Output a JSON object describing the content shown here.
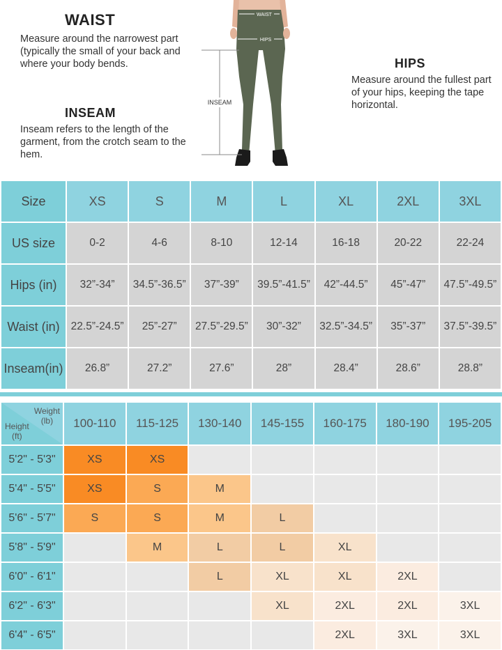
{
  "guide": {
    "waist": {
      "title": "WAIST",
      "text": "Measure around the narrowest part (typically the small of your back and where your body bends."
    },
    "inseam": {
      "title": "INSEAM",
      "text": "Inseam refers to the length of the garment, from the crotch seam to the hem."
    },
    "hips": {
      "title": "HIPS",
      "text": "Measure around the fullest part of your hips, keeping the tape horizontal."
    },
    "figure_labels": {
      "waist": "WAIST",
      "hips": "HIPS",
      "inseam": "INSEAM"
    }
  },
  "size_table": {
    "header_label": "Size",
    "sizes": [
      "XS",
      "S",
      "M",
      "L",
      "XL",
      "2XL",
      "3XL"
    ],
    "rows": [
      {
        "label": "US size",
        "values": [
          "0-2",
          "4-6",
          "8-10",
          "12-14",
          "16-18",
          "20-22",
          "22-24"
        ]
      },
      {
        "label": "Hips (in)",
        "values": [
          "32”-34”",
          "34.5”-36.5”",
          "37”-39”",
          "39.5”-41.5”",
          "42”-44.5”",
          "45”-47”",
          "47.5”-49.5”"
        ]
      },
      {
        "label": "Waist (in)",
        "values": [
          "22.5”-24.5”",
          "25”-27”",
          "27.5”-29.5”",
          "30”-32”",
          "32.5”-34.5”",
          "35”-37”",
          "37.5”-39.5”"
        ]
      },
      {
        "label": "Inseam(in)",
        "values": [
          "26.8”",
          "27.2”",
          "27.6”",
          "28”",
          "28.4”",
          "28.6”",
          "28.8”"
        ]
      }
    ]
  },
  "size_chart": {
    "corner": {
      "weight_label": "Weight",
      "weight_unit": "(lb)",
      "height_label": "Height",
      "height_unit": "(ft)"
    },
    "weights": [
      "100-110",
      "115-125",
      "130-140",
      "145-155",
      "160-175",
      "180-190",
      "195-205"
    ],
    "rows": [
      {
        "height": "5'2\" - 5'3\"",
        "values": [
          "XS",
          "XS",
          "",
          "",
          "",
          "",
          ""
        ]
      },
      {
        "height": "5'4\" - 5'5\"",
        "values": [
          "XS",
          "S",
          "M",
          "",
          "",
          "",
          ""
        ]
      },
      {
        "height": "5'6\" - 5'7\"",
        "values": [
          "S",
          "S",
          "M",
          "L",
          "",
          "",
          ""
        ]
      },
      {
        "height": "5'8\" - 5'9\"",
        "values": [
          "",
          "M",
          "L",
          "L",
          "XL",
          "",
          ""
        ]
      },
      {
        "height": "6'0\" - 6'1\"",
        "values": [
          "",
          "",
          "L",
          "XL",
          "XL",
          "2XL",
          ""
        ]
      },
      {
        "height": "6'2\" - 6'3\"",
        "values": [
          "",
          "",
          "",
          "XL",
          "2XL",
          "2XL",
          "3XL"
        ]
      },
      {
        "height": "6'4\" - 6'5\"",
        "values": [
          "",
          "",
          "",
          "",
          "2XL",
          "3XL",
          "3XL"
        ]
      }
    ]
  },
  "colors": {
    "teal_header": "#8fd3e0",
    "teal_rowhead": "#7ecfd9",
    "gray_cell": "#d4d4d4",
    "legging": "#5b6651"
  }
}
